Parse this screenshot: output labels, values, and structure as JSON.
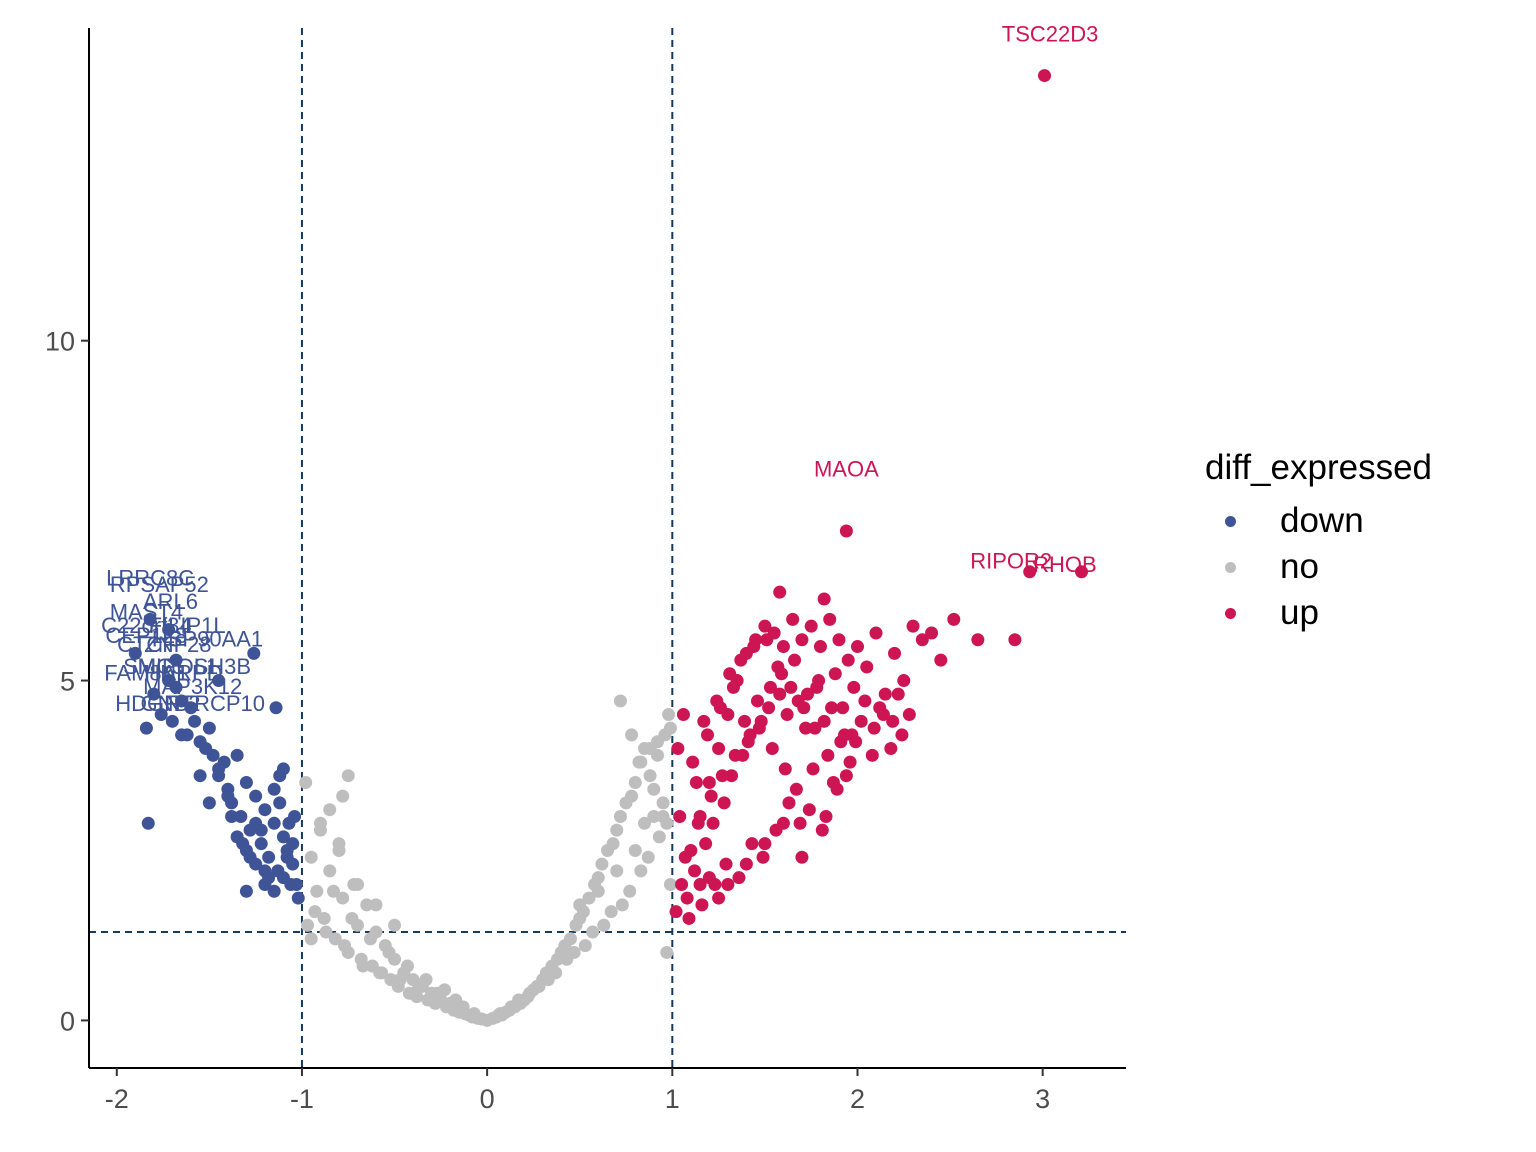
{
  "chart_data": {
    "type": "scatter",
    "title": "",
    "xlabel": "",
    "ylabel": "",
    "xlim": [
      -2.15,
      3.45
    ],
    "ylim": [
      -0.7,
      14.6
    ],
    "x_ticks": [
      -2,
      -1,
      0,
      1,
      2,
      3
    ],
    "x_tick_labels": [
      "-2",
      "-1",
      "0",
      "1",
      "2",
      "3"
    ],
    "y_ticks": [
      0,
      5,
      10
    ],
    "y_tick_labels": [
      "0",
      "5",
      "10"
    ],
    "threshold_lines": {
      "vertical": [
        -1,
        1
      ],
      "horizontal": [
        1.3
      ]
    },
    "legend": {
      "title": "diff_expressed",
      "placement": "right",
      "entries": [
        {
          "key": "down",
          "label": "down",
          "color": "#3e5496"
        },
        {
          "key": "no",
          "label": "no",
          "color": "#bebebe"
        },
        {
          "key": "up",
          "label": "up",
          "color": "#cd1553"
        }
      ]
    },
    "series": [
      {
        "name": "down",
        "color": "#3e5496",
        "x": [
          -1.84,
          -1.8,
          -1.76,
          -1.72,
          -1.68,
          -1.62,
          -1.58,
          -1.55,
          -1.52,
          -1.5,
          -1.48,
          -1.45,
          -1.42,
          -1.4,
          -1.38,
          -1.35,
          -1.33,
          -1.3,
          -1.28,
          -1.25,
          -1.22,
          -1.2,
          -1.18,
          -1.15,
          -1.13,
          -1.1,
          -1.08,
          -1.06,
          -1.04,
          -1.02,
          -1.45,
          -1.4,
          -1.35,
          -1.3,
          -1.25,
          -1.2,
          -1.15,
          -1.1,
          -1.05,
          -1.38,
          -1.32,
          -1.28,
          -1.22,
          -1.18,
          -1.12,
          -1.08,
          -1.03,
          -1.6,
          -1.55,
          -1.5,
          -1.7,
          -1.65,
          -1.15,
          -1.1,
          -1.05,
          -1.2,
          -1.25,
          -1.3,
          -1.12,
          -1.07,
          -1.83
        ],
        "y": [
          4.3,
          4.8,
          4.5,
          5.0,
          4.9,
          4.2,
          4.4,
          4.1,
          4.0,
          4.3,
          3.9,
          3.6,
          3.8,
          3.4,
          3.2,
          3.9,
          3.0,
          3.5,
          2.8,
          3.3,
          2.6,
          3.1,
          2.4,
          2.9,
          2.2,
          3.7,
          2.5,
          2.0,
          3.0,
          1.8,
          3.7,
          3.3,
          2.7,
          2.5,
          2.9,
          2.2,
          3.4,
          2.7,
          2.3,
          3.0,
          2.6,
          2.4,
          2.8,
          2.1,
          3.6,
          2.4,
          2.0,
          4.6,
          3.6,
          3.2,
          4.4,
          4.7,
          1.9,
          2.1,
          2.6,
          2.0,
          2.3,
          1.9,
          3.2,
          2.9,
          2.9
        ]
      },
      {
        "name": "no",
        "color": "#bebebe",
        "x": [
          -0.98,
          -0.95,
          -0.92,
          -0.9,
          -0.88,
          -0.85,
          -0.82,
          -0.8,
          -0.78,
          -0.75,
          -0.72,
          -0.7,
          -0.68,
          -0.65,
          -0.62,
          -0.6,
          -0.58,
          -0.55,
          -0.52,
          -0.5,
          -0.48,
          -0.45,
          -0.42,
          -0.4,
          -0.38,
          -0.35,
          -0.32,
          -0.3,
          -0.28,
          -0.25,
          -0.22,
          -0.2,
          -0.18,
          -0.15,
          -0.12,
          -0.1,
          -0.08,
          -0.05,
          -0.03,
          0.0,
          0.03,
          0.05,
          0.08,
          0.1,
          0.12,
          0.15,
          0.18,
          0.2,
          0.22,
          0.25,
          0.28,
          0.3,
          0.32,
          0.35,
          0.38,
          0.4,
          0.42,
          0.45,
          0.48,
          0.5,
          0.52,
          0.55,
          0.58,
          0.6,
          0.62,
          0.65,
          0.68,
          0.7,
          0.72,
          0.75,
          0.78,
          0.8,
          0.82,
          0.85,
          0.88,
          0.9,
          0.92,
          0.95,
          0.98,
          -0.97,
          -0.93,
          -0.87,
          -0.83,
          -0.77,
          -0.73,
          -0.67,
          -0.63,
          -0.57,
          -0.53,
          -0.47,
          -0.43,
          -0.37,
          -0.33,
          -0.27,
          -0.23,
          -0.17,
          -0.13,
          -0.07,
          0.07,
          0.13,
          0.17,
          0.23,
          0.27,
          0.33,
          0.37,
          0.43,
          0.47,
          0.53,
          0.57,
          0.63,
          0.67,
          0.73,
          0.77,
          0.83,
          0.87,
          0.93,
          0.97,
          -0.9,
          -0.8,
          -0.7,
          -0.6,
          -0.5,
          0.5,
          0.6,
          0.7,
          0.8,
          0.9,
          0.95,
          0.85,
          -0.75,
          -0.85,
          0.83,
          0.88,
          0.92,
          0.96,
          0.99,
          0.78,
          0.72,
          -0.95,
          -0.78,
          0.99,
          0.97
        ],
        "y": [
          3.5,
          2.4,
          1.9,
          2.8,
          1.5,
          2.2,
          1.2,
          2.6,
          1.8,
          1.0,
          2.0,
          1.4,
          0.9,
          1.7,
          0.8,
          1.3,
          0.7,
          1.1,
          0.6,
          0.9,
          0.5,
          0.7,
          0.4,
          0.6,
          0.35,
          0.5,
          0.3,
          0.4,
          0.25,
          0.3,
          0.2,
          0.25,
          0.15,
          0.12,
          0.1,
          0.08,
          0.05,
          0.03,
          0.02,
          0.0,
          0.03,
          0.05,
          0.08,
          0.12,
          0.15,
          0.2,
          0.25,
          0.3,
          0.35,
          0.45,
          0.5,
          0.6,
          0.7,
          0.8,
          0.9,
          1.0,
          1.1,
          1.2,
          1.4,
          1.5,
          1.6,
          1.8,
          2.0,
          2.1,
          2.3,
          2.5,
          2.6,
          2.8,
          3.0,
          3.2,
          3.3,
          3.5,
          3.8,
          4.0,
          3.6,
          3.4,
          4.1,
          3.0,
          4.5,
          1.4,
          1.6,
          1.3,
          1.9,
          1.1,
          1.5,
          0.8,
          1.2,
          0.7,
          1.0,
          0.6,
          0.8,
          0.5,
          0.6,
          0.4,
          0.45,
          0.3,
          0.2,
          0.1,
          0.1,
          0.2,
          0.3,
          0.4,
          0.5,
          0.6,
          0.7,
          0.9,
          1.0,
          1.1,
          1.3,
          1.4,
          1.6,
          1.7,
          1.9,
          2.2,
          2.4,
          2.7,
          2.9,
          2.9,
          2.5,
          2.0,
          1.7,
          1.4,
          1.7,
          1.9,
          2.2,
          2.5,
          3.0,
          3.2,
          2.9,
          3.6,
          3.1,
          3.8,
          4.0,
          3.9,
          4.2,
          4.3,
          4.2,
          4.7,
          1.2,
          3.3,
          2.0,
          1.0
        ]
      },
      {
        "name": "up",
        "color": "#cd1553",
        "x": [
          1.02,
          1.05,
          1.08,
          1.1,
          1.12,
          1.15,
          1.18,
          1.2,
          1.22,
          1.25,
          1.28,
          1.3,
          1.32,
          1.35,
          1.38,
          1.4,
          1.42,
          1.45,
          1.48,
          1.5,
          1.52,
          1.55,
          1.58,
          1.6,
          1.62,
          1.65,
          1.68,
          1.7,
          1.72,
          1.75,
          1.78,
          1.8,
          1.82,
          1.85,
          1.88,
          1.9,
          1.92,
          1.95,
          1.98,
          2.0,
          2.05,
          2.1,
          2.15,
          2.2,
          2.25,
          2.3,
          2.35,
          2.4,
          2.45,
          2.52,
          2.65,
          2.85,
          1.04,
          1.07,
          1.11,
          1.14,
          1.17,
          1.21,
          1.24,
          1.27,
          1.31,
          1.34,
          1.37,
          1.41,
          1.44,
          1.47,
          1.51,
          1.54,
          1.57,
          1.61,
          1.64,
          1.67,
          1.71,
          1.74,
          1.77,
          1.81,
          1.84,
          1.87,
          1.91,
          1.94,
          1.97,
          2.02,
          2.08,
          2.12,
          2.18,
          2.22,
          2.28,
          1.03,
          1.06,
          1.09,
          1.13,
          1.16,
          1.19,
          1.23,
          1.26,
          1.29,
          1.33,
          1.36,
          1.39,
          1.43,
          1.46,
          1.49,
          1.53,
          1.56,
          1.59,
          1.63,
          1.66,
          1.69,
          1.73,
          1.76,
          1.79,
          1.83,
          1.86,
          1.89,
          1.93,
          1.96,
          1.99,
          2.04,
          2.09,
          2.14,
          2.19,
          2.24,
          1.25,
          1.3,
          1.4,
          1.5,
          1.6,
          1.7,
          1.58,
          1.82,
          1.15,
          1.2
        ],
        "y": [
          1.6,
          2.0,
          1.8,
          2.5,
          2.2,
          3.0,
          2.6,
          3.5,
          2.9,
          4.0,
          3.2,
          4.5,
          3.6,
          5.0,
          3.9,
          5.4,
          4.2,
          5.6,
          4.4,
          5.8,
          4.6,
          5.7,
          4.8,
          5.5,
          4.5,
          5.9,
          4.7,
          5.6,
          4.3,
          5.8,
          4.9,
          5.5,
          4.4,
          5.9,
          5.1,
          5.6,
          4.6,
          5.3,
          4.9,
          5.5,
          5.2,
          5.7,
          4.8,
          5.4,
          5.0,
          5.8,
          5.6,
          5.7,
          5.3,
          5.9,
          5.6,
          5.6,
          3.0,
          2.4,
          3.8,
          2.9,
          4.4,
          3.3,
          4.7,
          3.6,
          5.1,
          3.9,
          5.3,
          4.1,
          5.5,
          4.3,
          5.6,
          4.0,
          5.2,
          3.7,
          4.9,
          3.4,
          4.6,
          3.1,
          4.3,
          2.8,
          3.9,
          3.5,
          4.1,
          3.6,
          4.2,
          4.4,
          3.9,
          4.6,
          4.0,
          4.8,
          4.5,
          4.0,
          4.5,
          1.5,
          3.5,
          1.7,
          4.2,
          2.0,
          4.6,
          2.3,
          4.9,
          2.1,
          4.4,
          2.6,
          4.7,
          2.4,
          4.9,
          2.8,
          5.1,
          3.2,
          5.3,
          2.9,
          4.8,
          3.7,
          5.0,
          3.0,
          4.6,
          3.4,
          4.2,
          3.8,
          4.1,
          4.7,
          4.3,
          4.5,
          4.4,
          4.2,
          1.8,
          2.0,
          2.3,
          2.6,
          2.9,
          2.4,
          6.3,
          6.2,
          2.0,
          2.1
        ]
      }
    ],
    "highlight_points": [
      {
        "series": "up",
        "x": 3.01,
        "y": 13.9
      },
      {
        "series": "up",
        "x": 1.94,
        "y": 7.2
      },
      {
        "series": "up",
        "x": 2.93,
        "y": 6.6
      },
      {
        "series": "up",
        "x": 3.21,
        "y": 6.6
      },
      {
        "series": "down",
        "x": -1.82,
        "y": 5.9
      },
      {
        "series": "down",
        "x": -1.72,
        "y": 5.75
      },
      {
        "series": "down",
        "x": -1.26,
        "y": 5.4
      },
      {
        "series": "down",
        "x": -1.9,
        "y": 5.4
      },
      {
        "series": "down",
        "x": -1.68,
        "y": 5.3
      },
      {
        "series": "down",
        "x": -1.45,
        "y": 5.0
      },
      {
        "series": "down",
        "x": -1.14,
        "y": 4.6
      },
      {
        "series": "down",
        "x": -1.65,
        "y": 4.2
      }
    ],
    "annotations": [
      {
        "text": "TSC22D3",
        "series": "up",
        "x": 3.04,
        "y": 14.4
      },
      {
        "text": "MAOA",
        "series": "up",
        "x": 1.94,
        "y": 8.0
      },
      {
        "text": "RIPOR2",
        "series": "up",
        "x": 2.83,
        "y": 6.65
      },
      {
        "text": "RHOB",
        "series": "up",
        "x": 3.12,
        "y": 6.6
      },
      {
        "text": "LRRC8C",
        "series": "down",
        "x": -1.82,
        "y": 6.4
      },
      {
        "text": "RPSAP52",
        "series": "down",
        "x": -1.77,
        "y": 6.3
      },
      {
        "text": "ARL6",
        "series": "down",
        "x": -1.71,
        "y": 6.05
      },
      {
        "text": "MAST4",
        "series": "down",
        "x": -1.84,
        "y": 5.9
      },
      {
        "text": "C22orf34",
        "series": "down",
        "x": -1.84,
        "y": 5.7
      },
      {
        "text": "FILIP1L",
        "series": "down",
        "x": -1.62,
        "y": 5.7
      },
      {
        "text": "CEP128",
        "series": "down",
        "x": -1.84,
        "y": 5.55
      },
      {
        "text": "HSP90AA1",
        "series": "down",
        "x": -1.51,
        "y": 5.5
      },
      {
        "text": "CTCF",
        "series": "down",
        "x": -1.84,
        "y": 5.42
      },
      {
        "text": "ZNF28",
        "series": "down",
        "x": -1.67,
        "y": 5.42
      },
      {
        "text": "SMC5",
        "series": "down",
        "x": -1.8,
        "y": 5.1
      },
      {
        "text": "MIPOL1",
        "series": "down",
        "x": -1.67,
        "y": 5.1
      },
      {
        "text": "SH3B",
        "series": "down",
        "x": -1.43,
        "y": 5.1
      },
      {
        "text": "FAM8A1",
        "series": "down",
        "x": -1.84,
        "y": 5.0
      },
      {
        "text": "HNRPD",
        "series": "down",
        "x": -1.64,
        "y": 5.0
      },
      {
        "text": "MAP3K12",
        "series": "down",
        "x": -1.59,
        "y": 4.8
      },
      {
        "text": "HDGF",
        "series": "down",
        "x": -1.84,
        "y": 4.55
      },
      {
        "text": "GNB2",
        "series": "down",
        "x": -1.71,
        "y": 4.55
      },
      {
        "text": "NTRCP10",
        "series": "down",
        "x": -1.47,
        "y": 4.55
      }
    ]
  }
}
